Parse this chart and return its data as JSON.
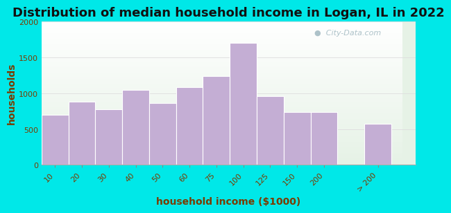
{
  "title": "Distribution of median household income in Logan, IL in 2022",
  "xlabel": "household income ($1000)",
  "ylabel": "households",
  "categories": [
    "10",
    "20",
    "30",
    "40",
    "50",
    "60",
    "75",
    "100",
    "125",
    "150",
    "200",
    "> 200"
  ],
  "values": [
    700,
    880,
    775,
    1045,
    860,
    1090,
    1240,
    1700,
    960,
    740,
    740,
    575
  ],
  "bar_color": "#c4aed4",
  "bar_edge_color": "#ffffff",
  "background_outer": "#00e8e8",
  "yticks": [
    0,
    500,
    1000,
    1500,
    2000
  ],
  "ylim": [
    0,
    2000
  ],
  "title_fontsize": 13,
  "axis_label_fontsize": 10,
  "tick_fontsize": 8,
  "title_color": "#111111",
  "axis_label_color": "#7a3b00",
  "tick_color": "#7a3b00",
  "watermark_text": "City-Data.com",
  "watermark_color": "#a0b8c0",
  "grid_color": "#dddddd",
  "bg_top_color": "#e6f2e6",
  "bg_bottom_color": "#f8fff8"
}
